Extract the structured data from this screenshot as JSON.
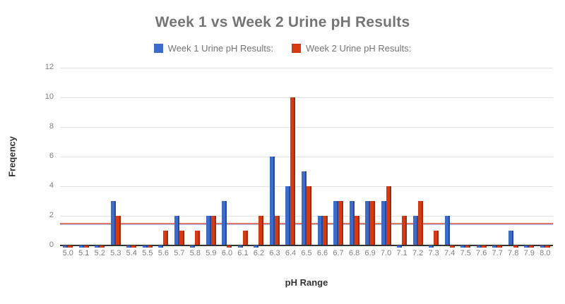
{
  "header": {
    "title": "Week 1 vs Week 2 Urine pH Results"
  },
  "legend": {
    "items": [
      {
        "label": "Week 1 Urine pH Results:",
        "color": "#3c6bc9"
      },
      {
        "label": "Week 2 Urine pH Results:",
        "color": "#d63a12"
      }
    ]
  },
  "axes": {
    "x_title": "pH Range",
    "y_title": "Freqency",
    "y_ticks": [
      0,
      2,
      4,
      6,
      8,
      10,
      12
    ]
  },
  "chart_data": {
    "type": "bar",
    "title": "Week 1 vs Week 2 Urine pH Results",
    "xlabel": "pH Range",
    "ylabel": "Freqency",
    "ylim": [
      0,
      12
    ],
    "yticks": [
      0,
      2,
      4,
      6,
      8,
      10,
      12
    ],
    "grid": true,
    "legend_position": "top",
    "categories": [
      "5.0",
      "5.1",
      "5.2",
      "5.3",
      "5.4",
      "5.5",
      "5.6",
      "5.7",
      "5.8",
      "5.9",
      "6.0",
      "6.1",
      "6.2",
      "6.3",
      "6.4",
      "6.5",
      "6.6",
      "6.7",
      "6.8",
      "6.9",
      "7.0",
      "7.1",
      "7.2",
      "7.3",
      "7.4",
      "7.5",
      "7.6",
      "7.7",
      "7.8",
      "7.9",
      "8.0"
    ],
    "series": [
      {
        "name": "Week 1 Urine pH Results:",
        "color": "#3c6bc9",
        "color_dark": "#28499c",
        "values": [
          0,
          0,
          0,
          3,
          0,
          0,
          0,
          2,
          0,
          2,
          3,
          0,
          0,
          6,
          4,
          5,
          2,
          3,
          3,
          3,
          3,
          0,
          2,
          0,
          2,
          0,
          0,
          0,
          1,
          0,
          0
        ]
      },
      {
        "name": "Week 2 Urine pH Results:",
        "color": "#d63a12",
        "color_dark": "#a02c0d",
        "values": [
          0,
          0,
          0,
          2,
          0,
          0,
          1,
          1,
          1,
          2,
          0,
          1,
          2,
          2,
          10,
          4,
          2,
          3,
          2,
          3,
          4,
          2,
          3,
          1,
          0,
          0,
          0,
          0,
          0,
          0,
          0
        ]
      }
    ],
    "average_lines": [
      {
        "name": "Week 1 average",
        "value": 1.42,
        "color": "#a7c0ee"
      },
      {
        "name": "Week 2 average",
        "value": 1.48,
        "color": "#e0796a"
      }
    ]
  }
}
